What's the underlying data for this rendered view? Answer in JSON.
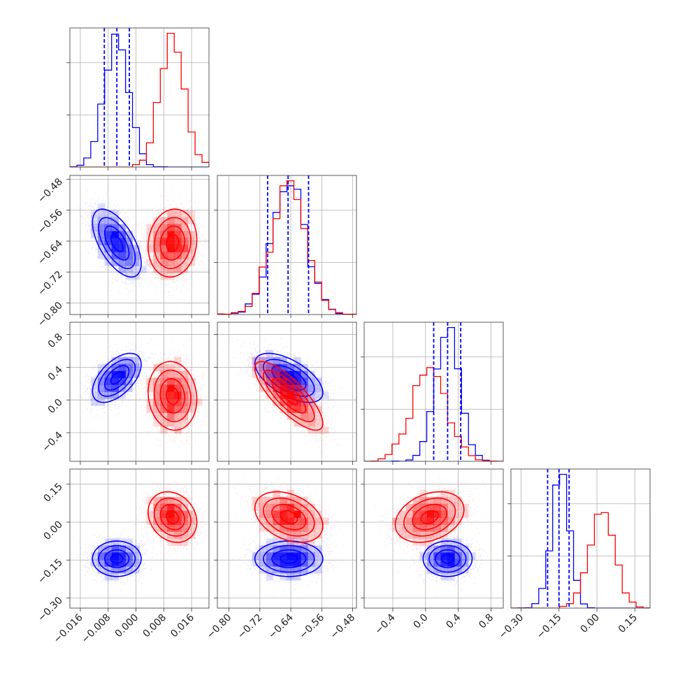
{
  "chart_data": {
    "type": "corner",
    "title": "",
    "grid": true,
    "legend": "none",
    "parameters": [
      {
        "range": [
          -0.019,
          0.021
        ],
        "ticks": [
          -0.016,
          -0.008,
          0.0,
          0.008,
          0.016
        ],
        "tick_labels": [
          "−0.016",
          "−0.008",
          "0.000",
          "0.008",
          "0.016"
        ]
      },
      {
        "range": [
          -0.83,
          -0.47
        ],
        "ticks": [
          -0.8,
          -0.72,
          -0.64,
          -0.56,
          -0.48
        ],
        "tick_labels": [
          "−0.80",
          "−0.72",
          "−0.64",
          "−0.56",
          "−0.48"
        ]
      },
      {
        "range": [
          -0.75,
          0.95
        ],
        "ticks": [
          -0.4,
          0.0,
          0.4,
          0.8
        ],
        "tick_labels": [
          "−0.4",
          "0.0",
          "0.4",
          "0.8"
        ]
      },
      {
        "range": [
          -0.34,
          0.21
        ],
        "ticks": [
          -0.3,
          -0.15,
          0.0,
          0.15
        ],
        "tick_labels": [
          "−0.30",
          "−0.15",
          "0.00",
          "0.15"
        ]
      }
    ],
    "series": [
      {
        "color": "#0000ff",
        "means": [
          -0.0055,
          -0.645,
          0.27,
          -0.145
        ],
        "sigmas": [
          0.0035,
          0.044,
          0.15,
          0.035
        ],
        "correlations": [
          [
            1,
            -0.6,
            0.55,
            0.0
          ],
          [
            -0.6,
            1,
            -0.6,
            0.0
          ],
          [
            0.55,
            -0.6,
            1,
            0.0
          ],
          [
            0.0,
            0.0,
            0.0,
            1
          ]
        ],
        "quantiles": [
          [
            -0.0091,
            -0.0055,
            -0.0019
          ],
          [
            -0.7,
            -0.647,
            -0.594
          ],
          [
            0.1,
            0.27,
            0.43
          ],
          [
            -0.195,
            -0.15,
            -0.11
          ]
        ]
      },
      {
        "color": "#ff0000",
        "means": [
          0.0105,
          -0.645,
          0.05,
          0.02
        ],
        "sigmas": [
          0.0035,
          0.044,
          0.21,
          0.05
        ],
        "correlations": [
          [
            1,
            0.1,
            -0.1,
            -0.2
          ],
          [
            0.1,
            1,
            -0.8,
            -0.35
          ],
          [
            -0.1,
            -0.8,
            1,
            0.3
          ],
          [
            -0.2,
            -0.35,
            0.3,
            1
          ]
        ]
      }
    ]
  }
}
